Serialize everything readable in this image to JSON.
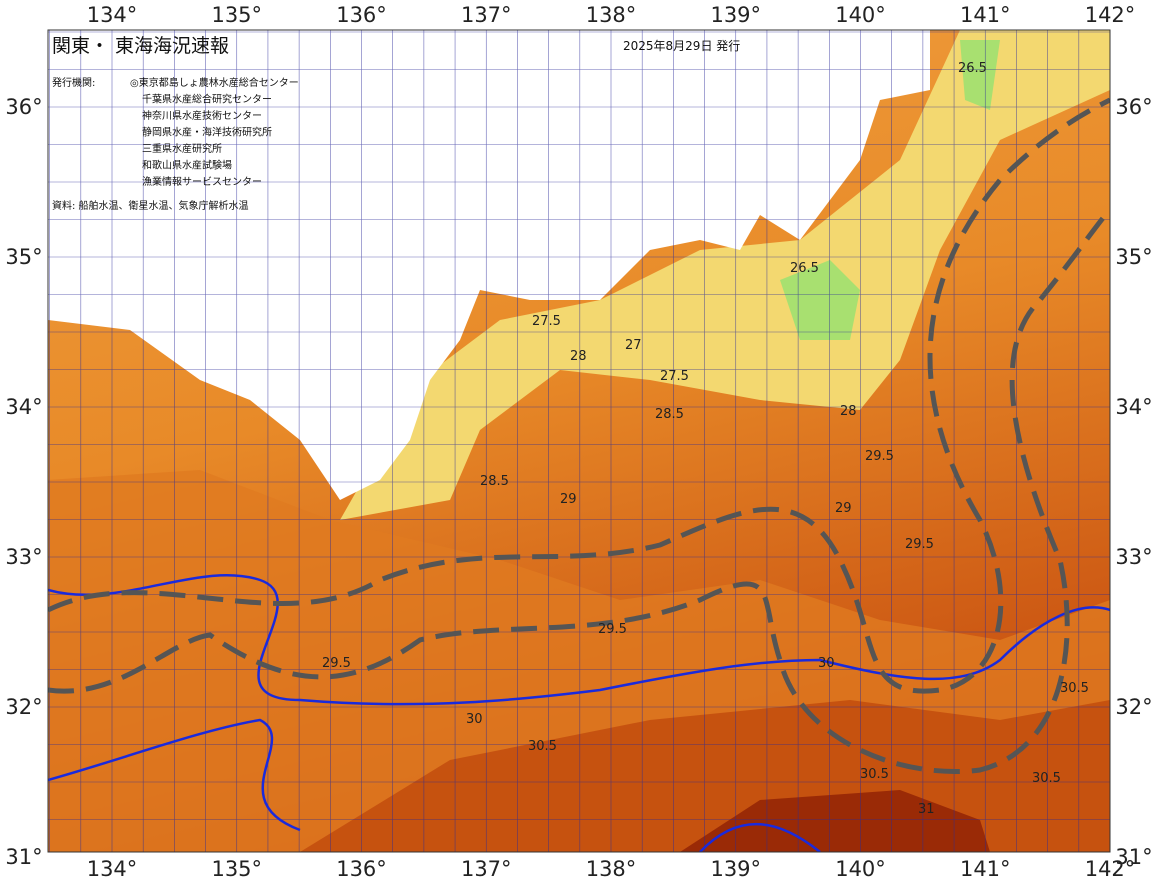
{
  "header": {
    "title": "関東・ 東海海況速報",
    "date": "2025年8月29日 発行"
  },
  "issuers": {
    "label": "発行機関:",
    "names": [
      "◎東京都島しょ農林水産総合センター",
      "千葉県水産総合研究センター",
      "神奈川県水産技術センター",
      "静岡県水産・海洋技術研究所",
      "三重県水産研究所",
      "和歌山県水産試験場",
      "漁業情報サービスセンター"
    ]
  },
  "source": "資料: 船舶水温、衛星水温、気象庁解析水温",
  "longitudes": [
    "134°",
    "135°",
    "136°",
    "137°",
    "138°",
    "139°",
    "140°",
    "141°",
    "142°"
  ],
  "latitudes": [
    "36°",
    "35°",
    "34°",
    "33°",
    "32°",
    "31°"
  ],
  "contour_labels": [
    "26.5",
    "26.5",
    "27.5",
    "27",
    "27.5",
    "28",
    "28.5",
    "28",
    "29",
    "29.5",
    "29.5",
    "30",
    "30.5",
    "30.5",
    "30",
    "30.5",
    "29.5",
    "29",
    "28.5",
    "29.5",
    "30.5",
    "31"
  ]
}
